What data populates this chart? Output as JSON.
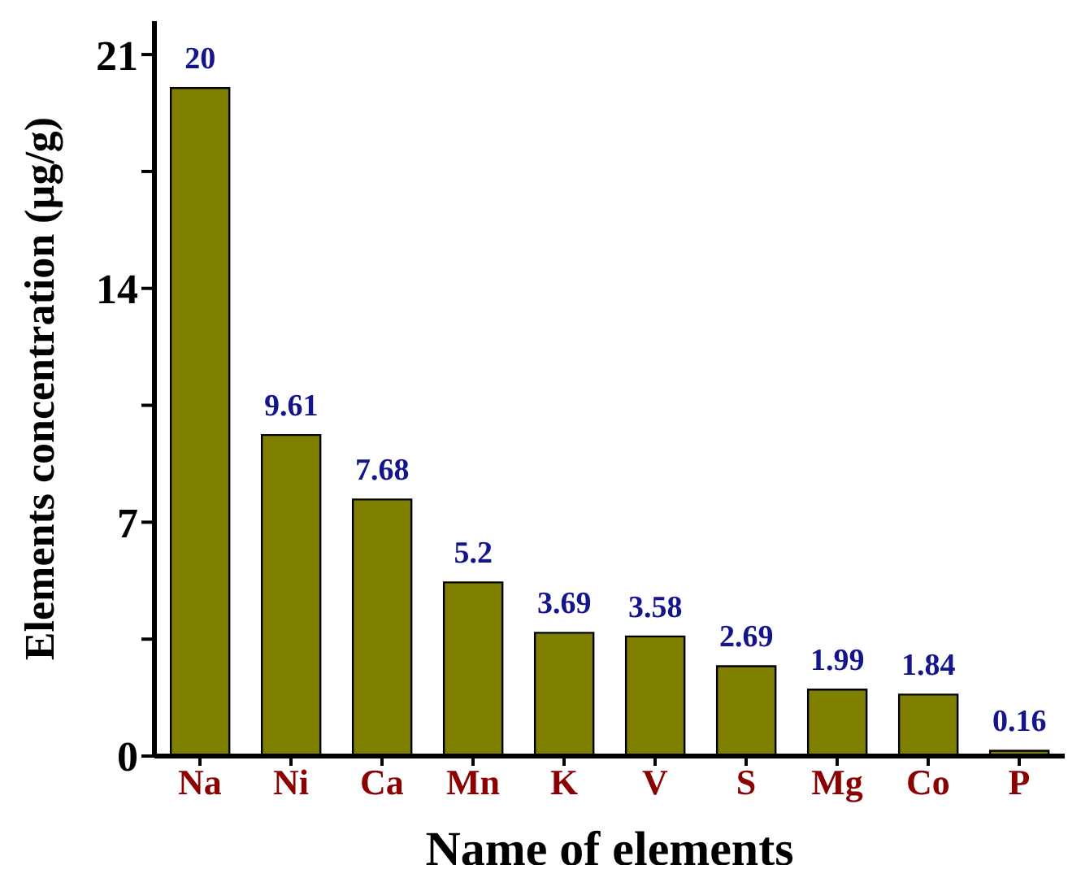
{
  "chart_data": {
    "type": "bar",
    "xlabel": "Name of elements",
    "ylabel": "Elements concentration (µg/g)",
    "categories": [
      "Na",
      "Ni",
      "Ca",
      "Mn",
      "K",
      "V",
      "S",
      "Mg",
      "Co",
      "P"
    ],
    "values": [
      20,
      9.61,
      7.68,
      5.2,
      3.69,
      3.58,
      2.69,
      1.99,
      1.84,
      0.16
    ],
    "color": "#808000",
    "ylim": [
      0,
      22
    ],
    "yticks": [
      0,
      {
        "value": 3.5,
        "label": null
      },
      7,
      {
        "value": 10.5,
        "label": null
      },
      14,
      {
        "value": 17.5,
        "label": null
      },
      21
    ],
    "data_labels": true,
    "grid": false,
    "legend": false
  }
}
